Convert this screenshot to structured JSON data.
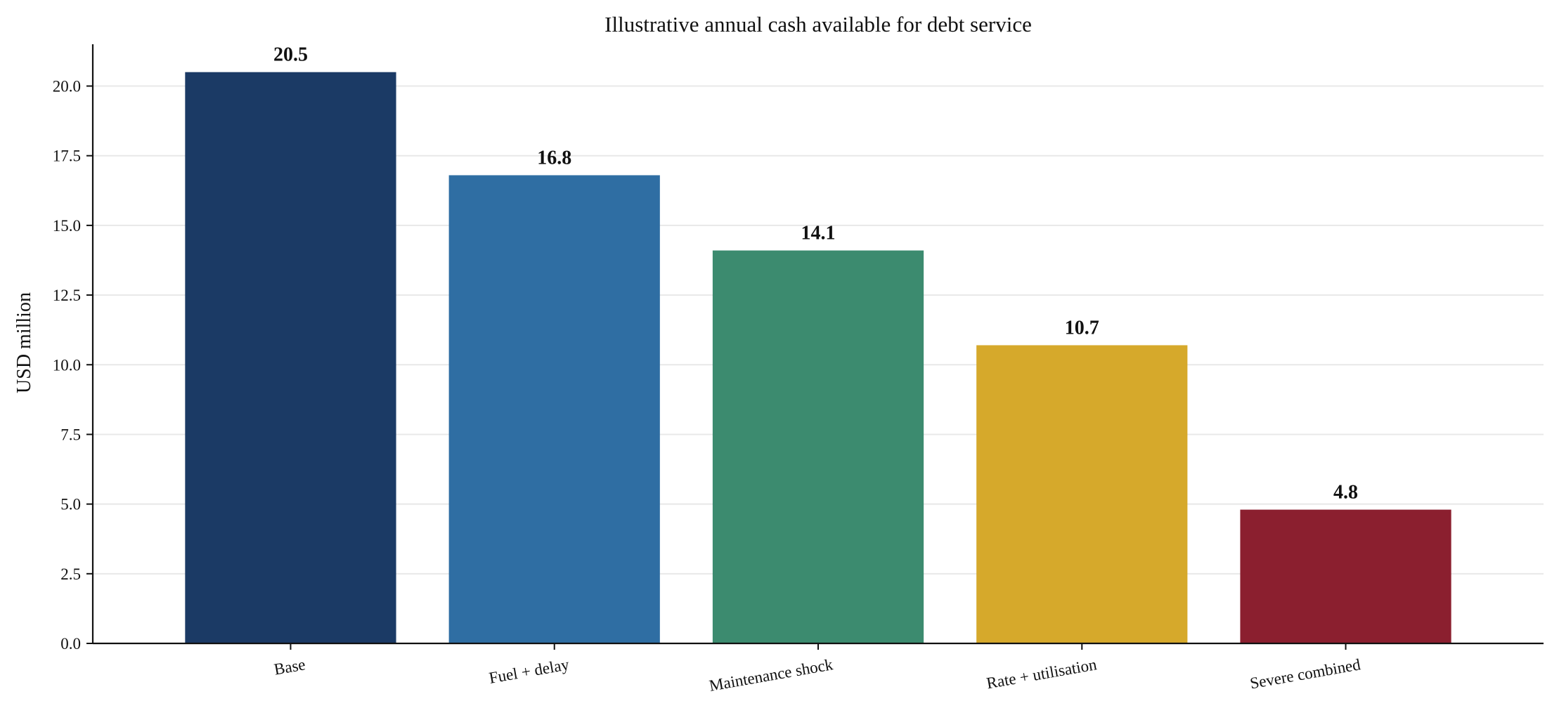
{
  "chart_data": {
    "type": "bar",
    "title": "Illustrative annual cash available for debt service",
    "xlabel": "",
    "ylabel": "USD million",
    "categories": [
      "Base",
      "Fuel + delay",
      "Maintenance shock",
      "Rate + utilisation",
      "Severe combined"
    ],
    "values": [
      20.5,
      16.8,
      14.1,
      10.7,
      4.8
    ],
    "value_labels": [
      "20.5",
      "16.8",
      "14.1",
      "10.7",
      "4.8"
    ],
    "colors": [
      "#1b3a65",
      "#2f6ea3",
      "#3c8b6f",
      "#d6a92b",
      "#8b1f2f"
    ],
    "ylim": [
      0,
      21.5
    ],
    "yticks": [
      0,
      2.5,
      5,
      7.5,
      10,
      12.5,
      15,
      17.5,
      20
    ],
    "ytick_labels": [
      "0.0",
      "2.5",
      "5.0",
      "7.5",
      "10.0",
      "12.5",
      "15.0",
      "17.5",
      "20.0"
    ],
    "grid": "horizontal",
    "grid_color": "#e8e8e8",
    "legend": "none"
  }
}
